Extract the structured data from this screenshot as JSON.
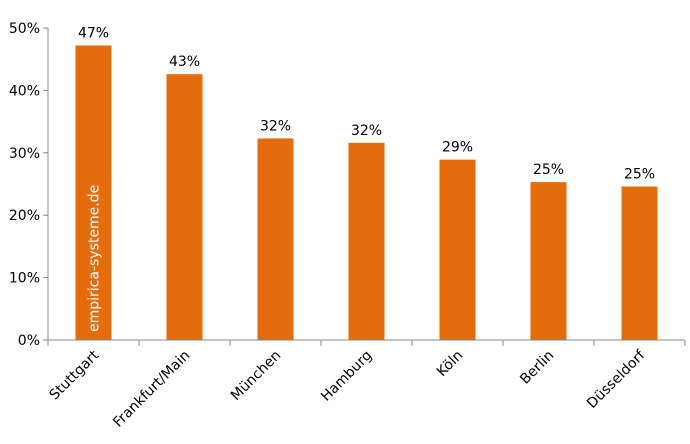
{
  "chart_data": {
    "type": "bar",
    "categories": [
      "Stuttgart",
      "Frankfurt/Main",
      "München",
      "Hamburg",
      "Köln",
      "Berlin",
      "Düsseldorf"
    ],
    "values": [
      47.2,
      42.6,
      32.3,
      31.6,
      28.9,
      25.3,
      24.6
    ],
    "value_labels": [
      "47%",
      "43%",
      "32%",
      "32%",
      "29%",
      "25%",
      "25%"
    ],
    "color": "#e46c0a",
    "ylim": [
      0,
      50
    ],
    "yticks": [
      {
        "value": 0,
        "label": "0%"
      },
      {
        "value": 10,
        "label": "10%"
      },
      {
        "value": 20,
        "label": "20%"
      },
      {
        "value": 30,
        "label": "30%"
      },
      {
        "value": 40,
        "label": "40%"
      },
      {
        "value": 50,
        "label": "50%"
      }
    ],
    "grid": false,
    "annotation": "empirica-systeme.de"
  }
}
